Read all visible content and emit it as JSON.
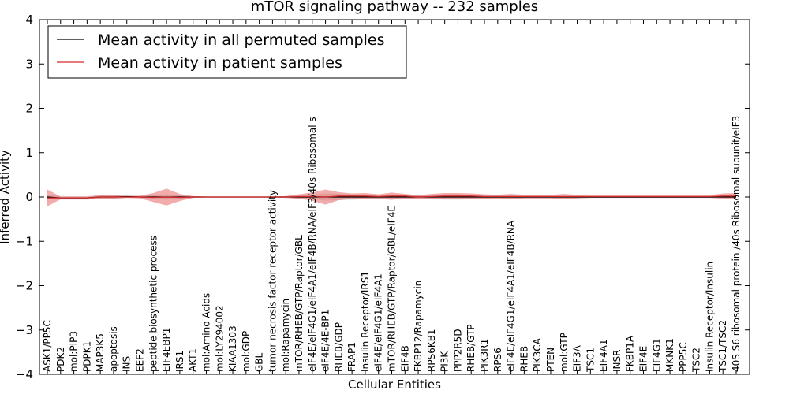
{
  "chart_data": {
    "type": "line",
    "title": "mTOR signaling pathway -- 232 samples",
    "xlabel": "Cellular Entities",
    "ylabel": "Inferred Activity",
    "ylim": [
      -4,
      4
    ],
    "yticks": [
      4,
      3,
      2,
      1,
      0,
      -1,
      -2,
      -3,
      -4
    ],
    "ytick_labels": [
      "4",
      "3",
      "2",
      "1",
      "0",
      "−1",
      "−2",
      "−3",
      "−4"
    ],
    "legend": {
      "placement": "top-left",
      "entries": [
        {
          "label": "Mean activity in all permuted samples",
          "color": "#000000"
        },
        {
          "label": "Mean activity in patient samples",
          "color": "#d62728"
        }
      ]
    },
    "categories": [
      "ASK1/PP5C",
      "PDK2",
      "mol:PIP3",
      "PDPK1",
      "MAP3K5",
      "apoptosis",
      "INS",
      "EEF2",
      "peptide biosynthetic process",
      "EIF4EBP1",
      "IRS1",
      "AKT1",
      "mol:Amino Acids",
      "mol:LY294002",
      "KIAA1303",
      "mol:GDP",
      "GBL",
      "tumor necrosis factor receptor activity",
      "mol:Rapamycin",
      "mTOR/RHEB/GTP/Raptor/GBL",
      "eIF4E/eIF4G1/eIF4A1/eIF4B/RNA/eIF3/40s Ribosomal s",
      "eIF4E/4E-BP1",
      "RHEB/GDP",
      "FRAP1",
      "Insulin Receptor/IRS1",
      "eIF4E/eIF4G1/eIF4A1",
      "mTOR/RHEB/GTP/Raptor/GBL/eIF4E",
      "EIF4B",
      "FKBP12/Rapamycin",
      "RPS6KB1",
      "PI3K",
      "PPP2R5D",
      "RHEB/GTP",
      "PIK3R1",
      "RPS6",
      "eIF4E/eIF4G1/eIF4A1/eIF4B/RNA",
      "RHEB",
      "PIK3CA",
      "PTEN",
      "mol:GTP",
      "EIF3A",
      "TSC1",
      "EIF4A1",
      "INSR",
      "FKBP1A",
      "EIF4E",
      "EIF4G1",
      "MKNK1",
      "PPP5C",
      "TSC2",
      "Insulin Receptor/Insulin",
      "TSC1/TSC2",
      "40S S6 ribosomal protein /40s Ribosomal subunit/eIF3"
    ],
    "series": [
      {
        "name": "Mean activity in all permuted samples",
        "color": "#000000",
        "values": [
          0.0,
          -0.02,
          -0.02,
          -0.02,
          0.0,
          0.0,
          0.01,
          0.0,
          0.0,
          0.0,
          0.0,
          0.0,
          0.0,
          0.0,
          0.0,
          0.0,
          0.0,
          0.0,
          0.0,
          0.0,
          0.0,
          0.0,
          0.0,
          0.0,
          0.0,
          0.0,
          0.0,
          0.0,
          0.0,
          0.0,
          0.0,
          0.0,
          0.0,
          0.0,
          0.0,
          0.0,
          0.0,
          0.0,
          0.0,
          0.0,
          0.0,
          0.0,
          0.0,
          0.0,
          0.0,
          0.0,
          0.0,
          0.0,
          0.0,
          0.0,
          0.0,
          0.0,
          0.0
        ],
        "band": [
          0.05,
          0.04,
          0.04,
          0.04,
          0.04,
          0.04,
          0.03,
          0.02,
          0.05,
          0.06,
          0.04,
          0.02,
          0.01,
          0.01,
          0.01,
          0.01,
          0.01,
          0.01,
          0.02,
          0.04,
          0.05,
          0.08,
          0.07,
          0.06,
          0.05,
          0.05,
          0.06,
          0.05,
          0.04,
          0.05,
          0.06,
          0.06,
          0.05,
          0.04,
          0.04,
          0.04,
          0.03,
          0.03,
          0.03,
          0.03,
          0.03,
          0.02,
          0.02,
          0.02,
          0.02,
          0.02,
          0.02,
          0.02,
          0.02,
          0.02,
          0.02,
          0.02,
          0.02
        ]
      },
      {
        "name": "Mean activity in patient samples",
        "color": "#d62728",
        "values": [
          -0.02,
          -0.02,
          -0.02,
          -0.02,
          0.0,
          0.0,
          0.0,
          0.0,
          -0.01,
          0.0,
          -0.01,
          0.0,
          0.0,
          0.0,
          0.0,
          0.0,
          0.0,
          0.0,
          0.0,
          0.01,
          0.01,
          0.0,
          0.02,
          0.02,
          0.02,
          0.01,
          0.02,
          0.02,
          0.0,
          0.01,
          0.02,
          0.02,
          0.02,
          0.01,
          0.01,
          0.01,
          0.01,
          0.01,
          0.01,
          0.01,
          0.01,
          0.01,
          0.01,
          0.01,
          0.01,
          0.01,
          0.01,
          0.01,
          0.01,
          0.01,
          0.01,
          0.02,
          0.02
        ],
        "band": [
          0.19,
          0.03,
          0.03,
          0.03,
          0.04,
          0.04,
          0.02,
          0.03,
          0.1,
          0.19,
          0.08,
          0.02,
          0.01,
          0.01,
          0.01,
          0.01,
          0.01,
          0.01,
          0.02,
          0.05,
          0.09,
          0.17,
          0.09,
          0.06,
          0.07,
          0.05,
          0.08,
          0.05,
          0.04,
          0.06,
          0.07,
          0.07,
          0.06,
          0.05,
          0.04,
          0.06,
          0.04,
          0.04,
          0.04,
          0.06,
          0.04,
          0.03,
          0.03,
          0.03,
          0.03,
          0.03,
          0.03,
          0.03,
          0.03,
          0.03,
          0.03,
          0.06,
          0.07
        ]
      }
    ]
  }
}
